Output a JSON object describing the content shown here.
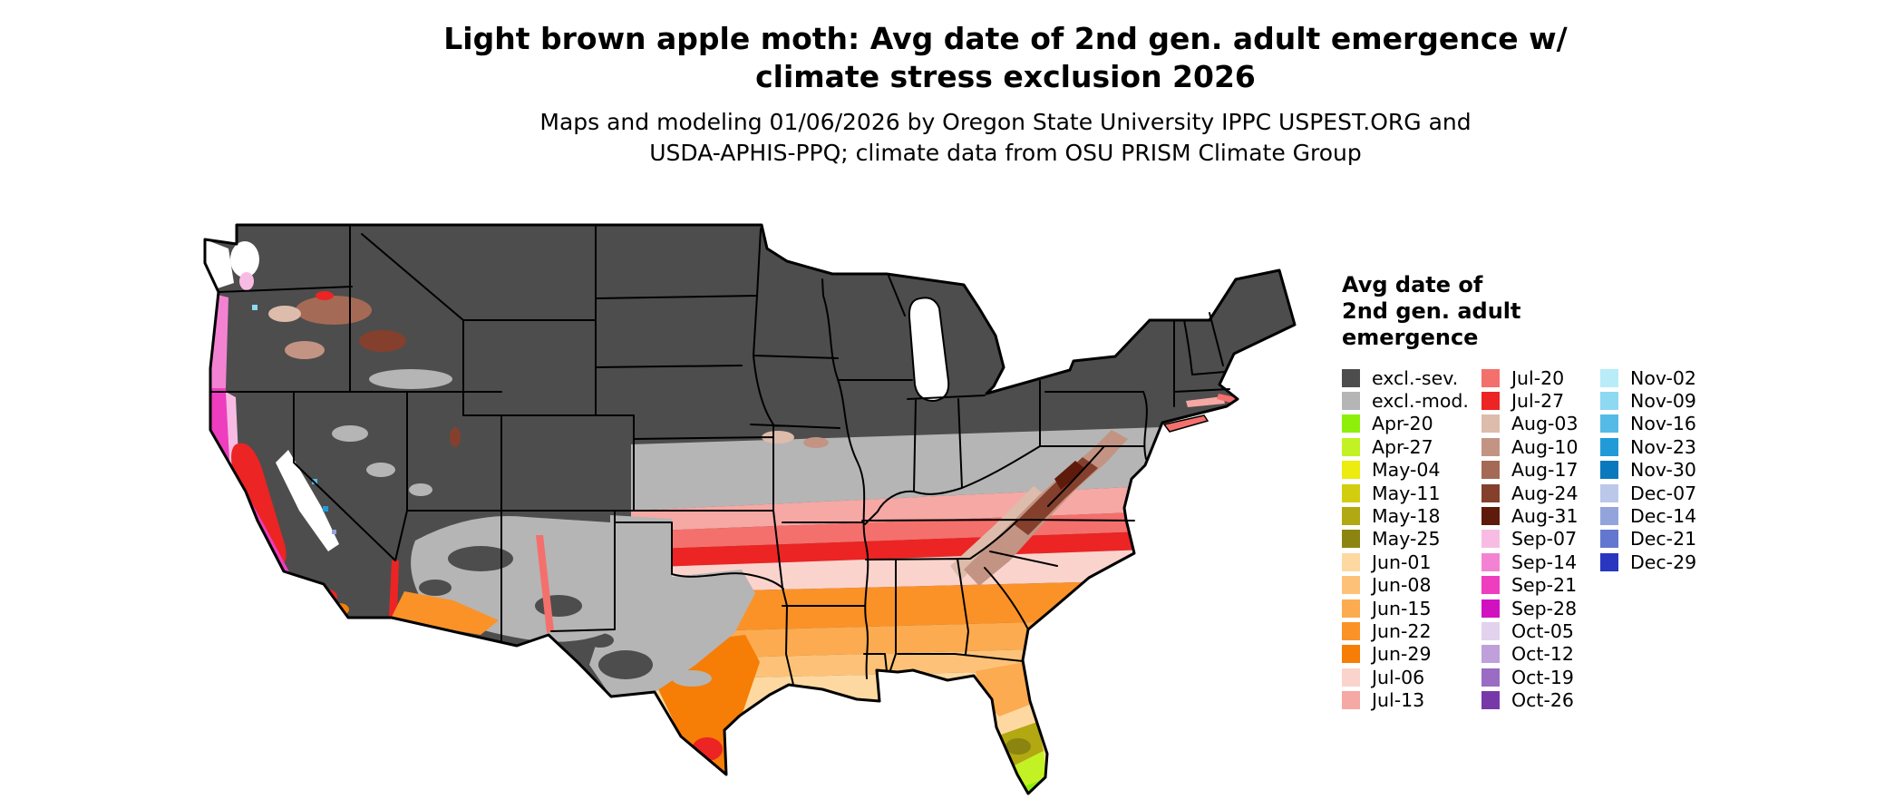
{
  "page": {
    "background": "#ffffff"
  },
  "title": {
    "line1": "Light brown apple moth: Avg date of 2nd gen. adult emergence w/",
    "line2": "climate stress exclusion 2026"
  },
  "subtitle": {
    "line1": "Maps and modeling 01/06/2026 by Oregon State University IPPC USPEST.ORG and",
    "line2": "USDA-APHIS-PPQ; climate data from OSU PRISM Climate Group"
  },
  "map": {
    "region": "Continental United States choropleth",
    "water_white": "#ffffff",
    "border_color": "#000000"
  },
  "legend": {
    "title_lines": [
      "Avg date of",
      "2nd gen. adult",
      "emergence"
    ],
    "columns": [
      {
        "items": [
          {
            "label": "excl.-sev.",
            "color": "#4d4d4d"
          },
          {
            "label": "excl.-mod.",
            "color": "#b5b5b5"
          },
          {
            "label": "Apr-20",
            "color": "#8ef00a"
          },
          {
            "label": "Apr-27",
            "color": "#c3f224"
          },
          {
            "label": "May-04",
            "color": "#ecec0e"
          },
          {
            "label": "May-11",
            "color": "#d3cd10"
          },
          {
            "label": "May-18",
            "color": "#b2a811"
          },
          {
            "label": "May-25",
            "color": "#8c8410"
          },
          {
            "label": "Jun-01",
            "color": "#fdd9a1"
          },
          {
            "label": "Jun-08",
            "color": "#fdc278"
          },
          {
            "label": "Jun-15",
            "color": "#fcab50"
          },
          {
            "label": "Jun-22",
            "color": "#fb9228"
          },
          {
            "label": "Jun-29",
            "color": "#f67d06"
          },
          {
            "label": "Jul-06",
            "color": "#fbd3cd"
          },
          {
            "label": "Jul-13",
            "color": "#f6a8a4"
          }
        ]
      },
      {
        "items": [
          {
            "label": "Jul-20",
            "color": "#f4706c"
          },
          {
            "label": "Jul-27",
            "color": "#ec2424"
          },
          {
            "label": "Aug-03",
            "color": "#ddbcab"
          },
          {
            "label": "Aug-10",
            "color": "#c39484"
          },
          {
            "label": "Aug-17",
            "color": "#a56a56"
          },
          {
            "label": "Aug-24",
            "color": "#84402c"
          },
          {
            "label": "Aug-31",
            "color": "#5e1a0a"
          },
          {
            "label": "Sep-07",
            "color": "#f8bce4"
          },
          {
            "label": "Sep-14",
            "color": "#f383d2"
          },
          {
            "label": "Sep-21",
            "color": "#ee3dbe"
          },
          {
            "label": "Sep-28",
            "color": "#d110c2"
          },
          {
            "label": "Oct-05",
            "color": "#e2d2ee"
          },
          {
            "label": "Oct-12",
            "color": "#bfa0da"
          },
          {
            "label": "Oct-19",
            "color": "#9b6cc3"
          },
          {
            "label": "Oct-26",
            "color": "#7739a8"
          }
        ]
      },
      {
        "items": [
          {
            "label": "Nov-02",
            "color": "#b8ecf9"
          },
          {
            "label": "Nov-09",
            "color": "#8ed8f2"
          },
          {
            "label": "Nov-16",
            "color": "#55bbe6"
          },
          {
            "label": "Nov-23",
            "color": "#219bd8"
          },
          {
            "label": "Nov-30",
            "color": "#0a78bd"
          },
          {
            "label": "Dec-07",
            "color": "#bcc8ea"
          },
          {
            "label": "Dec-14",
            "color": "#93a4dd"
          },
          {
            "label": "Dec-21",
            "color": "#6277cf"
          },
          {
            "label": "Dec-29",
            "color": "#2936c0"
          }
        ]
      }
    ]
  }
}
